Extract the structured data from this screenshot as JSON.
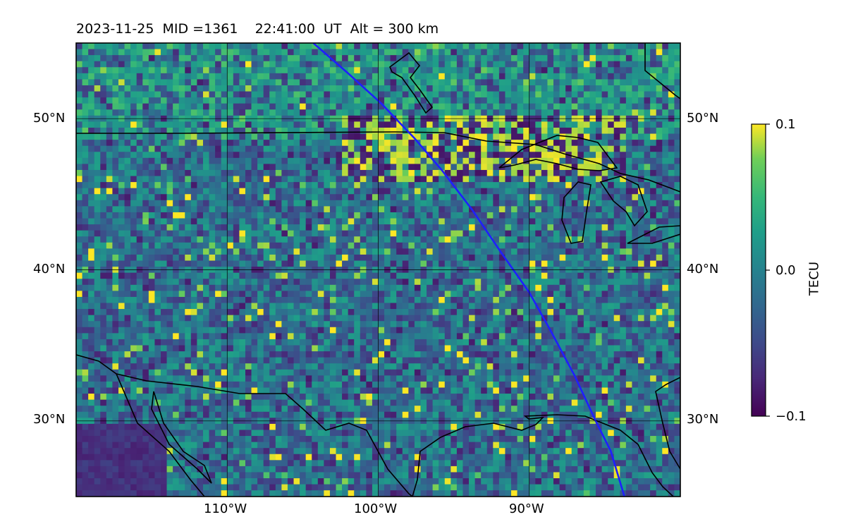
{
  "title": "2023-11-25  MID =1361    22:41:00  UT  Alt = 300 km",
  "map": {
    "extent": {
      "lon": [
        -120,
        -80
      ],
      "lat": [
        25,
        55
      ]
    },
    "lat_ticks": [
      {
        "value": 50,
        "label": "50°N"
      },
      {
        "value": 40,
        "label": "40°N"
      },
      {
        "value": 30,
        "label": "30°N"
      }
    ],
    "lon_ticks": [
      {
        "value": -110,
        "label": "110°W"
      },
      {
        "value": -100,
        "label": "100°W"
      },
      {
        "value": -90,
        "label": "90°W"
      }
    ],
    "field": "TEC perturbation (gridded pixels)",
    "track_color": "#1f1fff",
    "track": [
      [
        -104.3,
        55
      ],
      [
        -102,
        53
      ],
      [
        -99.8,
        51
      ],
      [
        -97.6,
        48.7
      ],
      [
        -95.8,
        46.6
      ],
      [
        -93.8,
        44
      ],
      [
        -91.9,
        41.2
      ],
      [
        -90,
        38.5
      ],
      [
        -88.6,
        36
      ],
      [
        -87,
        33
      ],
      [
        -85.6,
        30
      ],
      [
        -84.6,
        28
      ],
      [
        -83.7,
        25
      ]
    ]
  },
  "colorbar": {
    "label": "TECU",
    "min": -0.1,
    "max": 0.1,
    "ticks": [
      {
        "value": 0.1,
        "label": "0.1"
      },
      {
        "value": 0.0,
        "label": "0.0"
      },
      {
        "value": -0.1,
        "label": "−0.1"
      }
    ],
    "colormap": "viridis"
  }
}
